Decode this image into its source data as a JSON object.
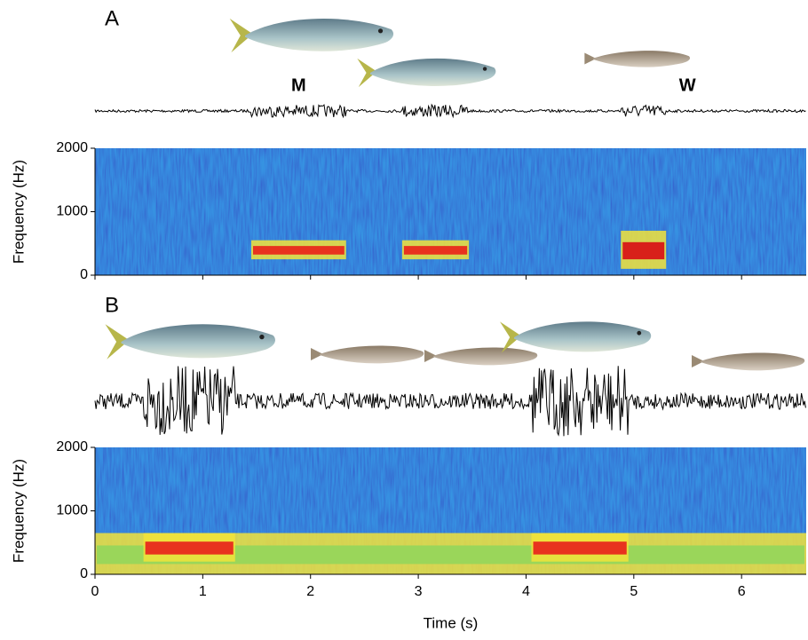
{
  "chart_data": [
    {
      "type": "spectrogram",
      "panel_label": "A",
      "y_label": "Frequency (Hz)",
      "ylim": [
        0,
        2000
      ],
      "yticks": [
        0,
        1000,
        2000
      ],
      "xlim": [
        0,
        6.6
      ],
      "xticks": [
        0,
        1,
        2,
        3,
        4,
        5,
        6
      ],
      "events": [
        {
          "x": [
            1.45,
            2.33
          ],
          "y": [
            250,
            550
          ],
          "color": "#e8321e",
          "label": "M"
        },
        {
          "x": [
            2.85,
            3.47
          ],
          "y": [
            250,
            550
          ],
          "color": "#e8321e"
        },
        {
          "x": [
            4.88,
            5.3
          ],
          "y": [
            100,
            700
          ],
          "color": "#d8201a",
          "label": "W"
        }
      ]
    },
    {
      "type": "spectrogram",
      "panel_label": "B",
      "y_label": "Frequency (Hz)",
      "x_label": "Time (s)",
      "ylim": [
        0,
        2000
      ],
      "yticks": [
        0,
        1000,
        2000
      ],
      "xlim": [
        0,
        6.6
      ],
      "xticks": [
        0,
        1,
        2,
        3,
        4,
        5,
        6
      ],
      "events": [
        {
          "x": [
            0,
            6.6
          ],
          "y": [
            0,
            650
          ],
          "color": "#9ad65a"
        },
        {
          "x": [
            0.45,
            1.3
          ],
          "y": [
            200,
            650
          ],
          "color": "#e8321e"
        },
        {
          "x": [
            4.05,
            4.95
          ],
          "y": [
            200,
            650
          ],
          "color": "#e8321e"
        }
      ]
    }
  ]
}
